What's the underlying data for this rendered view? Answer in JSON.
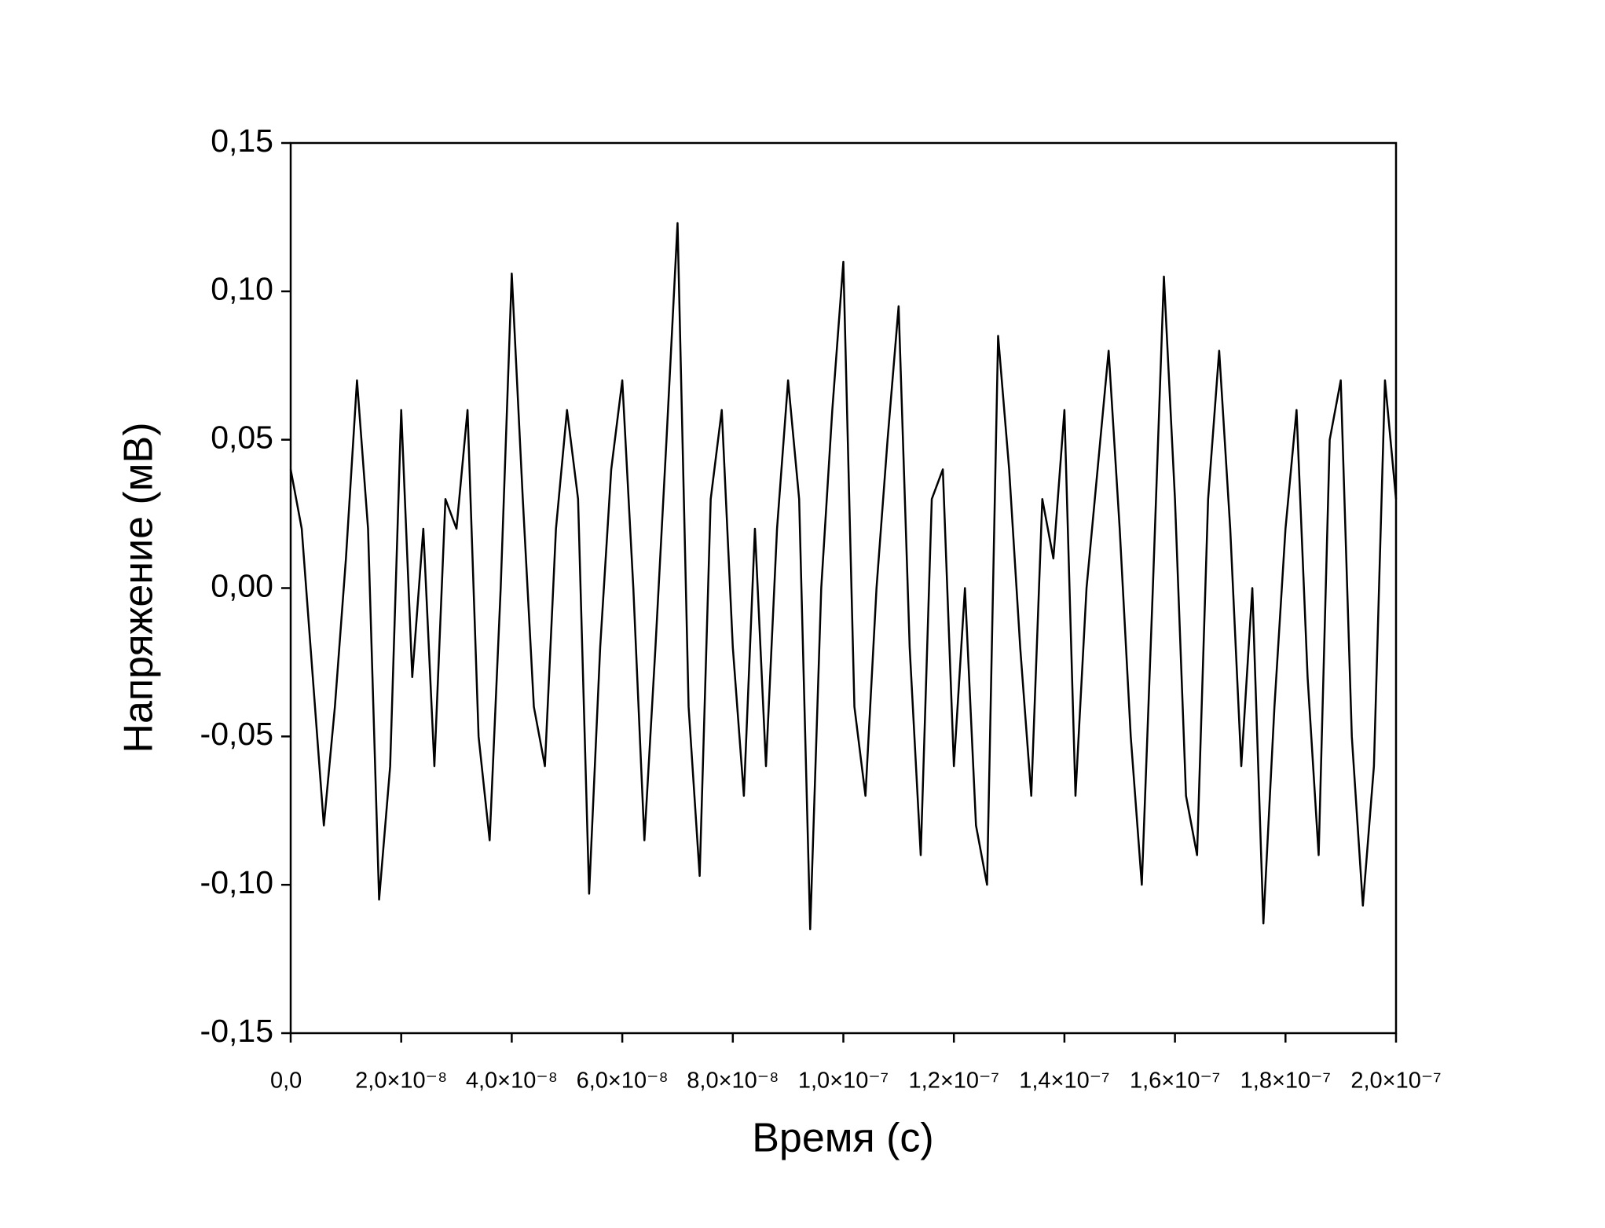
{
  "chart_data": {
    "type": "line",
    "x_label": "Время (с)",
    "y_label": "Напряжение (мВ)",
    "x": [
      0,
      2e-09,
      4e-09,
      6e-09,
      8e-09,
      1e-08,
      1.2e-08,
      1.4e-08,
      1.6e-08,
      1.8e-08,
      2e-08,
      2.2e-08,
      2.4e-08,
      2.6e-08,
      2.8e-08,
      3e-08,
      3.2e-08,
      3.4e-08,
      3.6e-08,
      3.8e-08,
      4e-08,
      4.2e-08,
      4.4e-08,
      4.6e-08,
      4.8e-08,
      5e-08,
      5.2e-08,
      5.4e-08,
      5.6e-08,
      5.8e-08,
      6e-08,
      6.2e-08,
      6.4e-08,
      6.6e-08,
      6.8e-08,
      7e-08,
      7.2e-08,
      7.4e-08,
      7.6e-08,
      7.8e-08,
      8e-08,
      8.2e-08,
      8.4e-08,
      8.6e-08,
      8.8e-08,
      9e-08,
      9.2e-08,
      9.4e-08,
      9.6e-08,
      9.8e-08,
      1e-07,
      1.02e-07,
      1.04e-07,
      1.06e-07,
      1.08e-07,
      1.1e-07,
      1.12e-07,
      1.14e-07,
      1.16e-07,
      1.18e-07,
      1.2e-07,
      1.22e-07,
      1.24e-07,
      1.26e-07,
      1.28e-07,
      1.3e-07,
      1.32e-07,
      1.34e-07,
      1.36e-07,
      1.38e-07,
      1.4e-07,
      1.42e-07,
      1.44e-07,
      1.46e-07,
      1.48e-07,
      1.5e-07,
      1.52e-07,
      1.54e-07,
      1.56e-07,
      1.58e-07,
      1.6e-07,
      1.62e-07,
      1.64e-07,
      1.66e-07,
      1.68e-07,
      1.7e-07,
      1.72e-07,
      1.74e-07,
      1.76e-07,
      1.78e-07,
      1.8e-07,
      1.82e-07,
      1.84e-07,
      1.86e-07,
      1.88e-07,
      1.9e-07,
      1.92e-07,
      1.94e-07,
      1.96e-07,
      1.98e-07,
      2e-07
    ],
    "values": [
      0.04,
      0.02,
      -0.03,
      -0.08,
      -0.04,
      0.01,
      0.07,
      0.02,
      -0.105,
      -0.06,
      0.06,
      -0.03,
      0.02,
      -0.06,
      0.03,
      0.02,
      0.06,
      -0.05,
      -0.085,
      0.0,
      0.106,
      0.03,
      -0.04,
      -0.06,
      0.02,
      0.06,
      0.03,
      -0.103,
      -0.02,
      0.04,
      0.07,
      0.0,
      -0.085,
      -0.02,
      0.05,
      0.123,
      -0.04,
      -0.097,
      0.03,
      0.06,
      -0.02,
      -0.07,
      0.02,
      -0.06,
      0.02,
      0.07,
      0.03,
      -0.115,
      0.0,
      0.06,
      0.11,
      -0.04,
      -0.07,
      0.0,
      0.05,
      0.095,
      -0.02,
      -0.09,
      0.03,
      0.04,
      -0.06,
      0.0,
      -0.08,
      -0.1,
      0.085,
      0.04,
      -0.02,
      -0.07,
      0.03,
      0.01,
      0.06,
      -0.07,
      0.0,
      0.04,
      0.08,
      0.02,
      -0.05,
      -0.1,
      0.0,
      0.105,
      0.03,
      -0.07,
      -0.09,
      0.03,
      0.08,
      0.02,
      -0.06,
      0.0,
      -0.113,
      -0.04,
      0.02,
      0.06,
      -0.03,
      -0.09,
      0.05,
      0.07,
      -0.05,
      -0.107,
      -0.06,
      0.07,
      0.03
    ],
    "color": "#000000",
    "xlim": [
      0,
      2e-07
    ],
    "xticks": [
      {
        "value": 0,
        "label": "0,0"
      },
      {
        "value": 2e-08,
        "label": "2,0×10⁻⁸"
      },
      {
        "value": 4e-08,
        "label": "4,0×10⁻⁸"
      },
      {
        "value": 6e-08,
        "label": "6,0×10⁻⁸"
      },
      {
        "value": 8e-08,
        "label": "8,0×10⁻⁸"
      },
      {
        "value": 1e-07,
        "label": "1,0×10⁻⁷"
      },
      {
        "value": 1.2e-07,
        "label": "1,2×10⁻⁷"
      },
      {
        "value": 1.4e-07,
        "label": "1,4×10⁻⁷"
      },
      {
        "value": 1.6e-07,
        "label": "1,6×10⁻⁷"
      },
      {
        "value": 1.8e-07,
        "label": "1,8×10⁻⁷"
      },
      {
        "value": 2e-07,
        "label": "2,0×10⁻⁷"
      }
    ],
    "ylim": [
      -0.15,
      0.15
    ],
    "yticks": [
      {
        "value": -0.15,
        "label": "-0,15"
      },
      {
        "value": -0.1,
        "label": "-0,10"
      },
      {
        "value": -0.05,
        "label": "-0,05"
      },
      {
        "value": 0,
        "label": "0,00"
      },
      {
        "value": 0.05,
        "label": "0,05"
      },
      {
        "value": 0.1,
        "label": "0,10"
      },
      {
        "value": 0.15,
        "label": "0,15"
      }
    ]
  }
}
